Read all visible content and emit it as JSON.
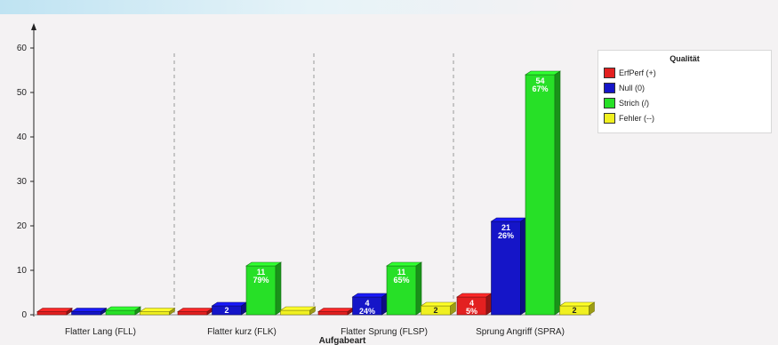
{
  "chart_data": {
    "type": "bar",
    "title": "",
    "xlabel": "Aufgabeart",
    "ylabel": "",
    "ylim": [
      0,
      65
    ],
    "yticks": [
      0,
      10,
      20,
      30,
      40,
      50,
      60
    ],
    "grid": false,
    "legend_position": "top-right",
    "legend_title": "Qualität",
    "categories": [
      "Flatter Lang (FLL)",
      "Flatter kurz (FLK)",
      "Flatter Sprung (FLSP)",
      "Sprung Angriff (SPRA)"
    ],
    "series": [
      {
        "name": "ErfPerf (+)",
        "color": "#e32020",
        "values": [
          0,
          0,
          0,
          4
        ],
        "labels": [
          "",
          "",
          "",
          "4\n5%"
        ]
      },
      {
        "name": "Null (0)",
        "color": "#1515c8",
        "values": [
          0,
          2,
          4,
          21
        ],
        "labels": [
          "",
          "2",
          "4\n24%",
          "21\n26%"
        ]
      },
      {
        "name": "Strich (/)",
        "color": "#27e027",
        "values": [
          1,
          11,
          11,
          54
        ],
        "labels": [
          "",
          "11\n79%",
          "11\n65%",
          "54\n67%"
        ]
      },
      {
        "name": "Fehler (--)",
        "color": "#f0f020",
        "values": [
          0,
          1,
          2,
          2
        ],
        "labels": [
          "",
          "",
          "2",
          "2"
        ]
      }
    ]
  }
}
